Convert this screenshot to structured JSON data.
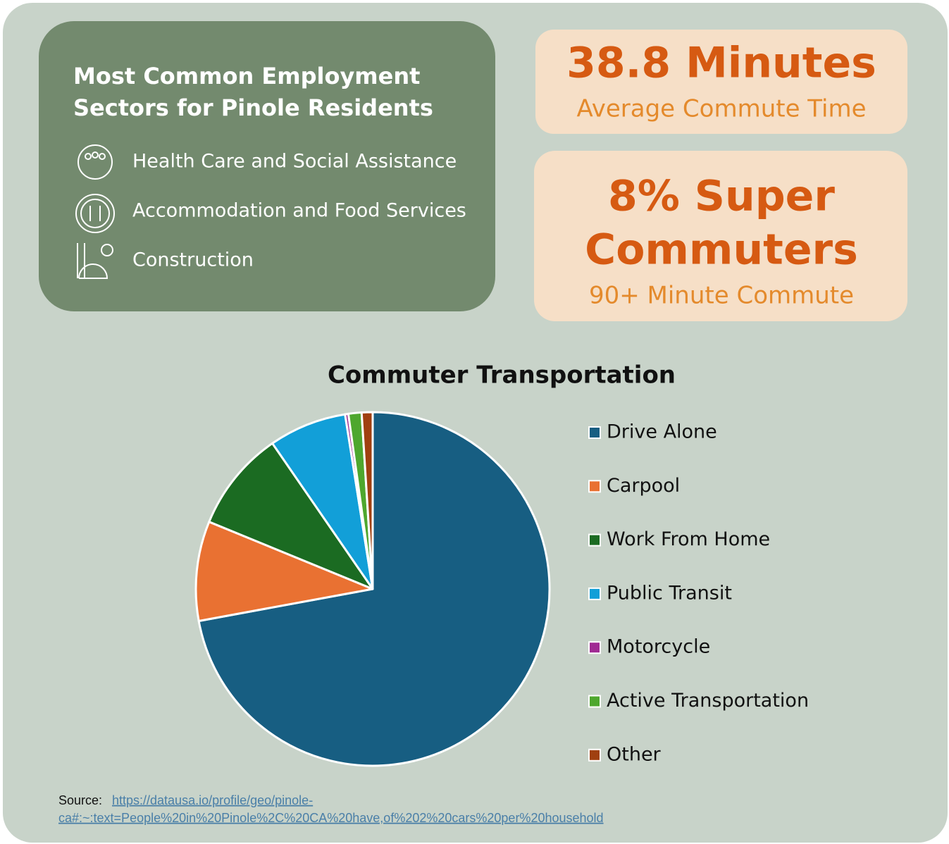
{
  "sectors": {
    "title_lines": [
      "Most Common Employment",
      "Sectors for Pinole Residents"
    ],
    "items": [
      "Health Care and Social Assistance",
      "Accommodation and Food Services",
      "Construction"
    ]
  },
  "stats": [
    {
      "headline_lines": [
        "38.8 Minutes"
      ],
      "caption": "Average Commute Time"
    },
    {
      "headline_lines": [
        "8% Super",
        "Commuters"
      ],
      "caption": "90+ Minute Commute"
    }
  ],
  "chart_data": {
    "type": "pie",
    "title": "Commuter Transportation",
    "categories": [
      "Drive Alone",
      "Carpool",
      "Work From Home",
      "Public Transit",
      "Motorcycle",
      "Active Transportation",
      "Other"
    ],
    "values": [
      72.1,
      9.1,
      9.2,
      7.1,
      0.3,
      1.2,
      1.0
    ],
    "colors": [
      "#175e82",
      "#e97132",
      "#1b6b22",
      "#129fd8",
      "#a02b93",
      "#4ea72e",
      "#a04010"
    ],
    "legend": "right"
  },
  "source": {
    "label": "Source:",
    "url_lines": [
      "https://datausa.io/profile/geo/pinole-",
      "ca#:~:text=People%20in%20Pinole%2C%20CA%20have,of%202%20cars%20per%20household"
    ]
  }
}
